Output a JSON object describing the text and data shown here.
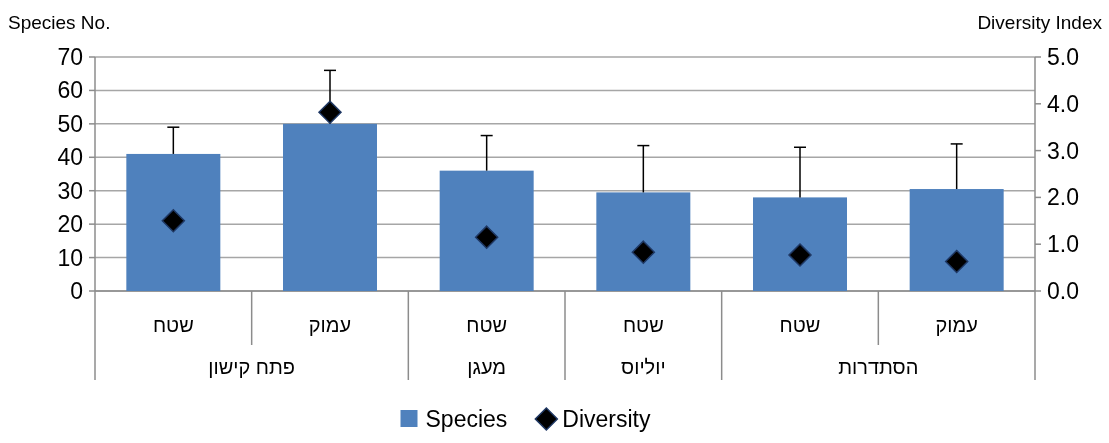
{
  "chart_data": {
    "type": "bar",
    "categories": [
      "שטח",
      "עמוק",
      "שטח",
      "שטח",
      "שטח",
      "עמוק"
    ],
    "series": [
      {
        "name": "Species",
        "color": "#4f81bd",
        "values": [
          41,
          50,
          36,
          29.5,
          28,
          30.5
        ],
        "errors": [
          [
            41,
            49
          ],
          [
            50,
            66
          ],
          [
            36,
            46.5
          ],
          [
            29.5,
            43.5
          ],
          [
            28,
            43
          ],
          [
            30.5,
            44
          ]
        ]
      },
      {
        "name": "Diversity",
        "type": "scatter",
        "axis": "y2",
        "marker": "diamond",
        "color": "#000000",
        "values": [
          1.5,
          3.82,
          1.15,
          0.83,
          0.77,
          0.63
        ]
      }
    ],
    "ylabel": "Species No.",
    "y2label": "Diversity Index",
    "ylim": [
      0,
      70
    ],
    "yticks": [
      0,
      10,
      20,
      30,
      40,
      50,
      60,
      70
    ],
    "y2lim": [
      0,
      5
    ],
    "y2ticks": [
      {
        "value": 0,
        "label": "0.0"
      },
      {
        "value": 1,
        "label": "1.0"
      },
      {
        "value": 2,
        "label": "2.0"
      },
      {
        "value": 3,
        "label": "3.0"
      },
      {
        "value": 4,
        "label": "4.0"
      },
      {
        "value": 5,
        "label": "5.0"
      }
    ],
    "annotations": [
      "פתח קישון",
      "מעגן",
      "יוליוס",
      "הסתדרות"
    ],
    "grid": "y",
    "legend": "bottom"
  }
}
